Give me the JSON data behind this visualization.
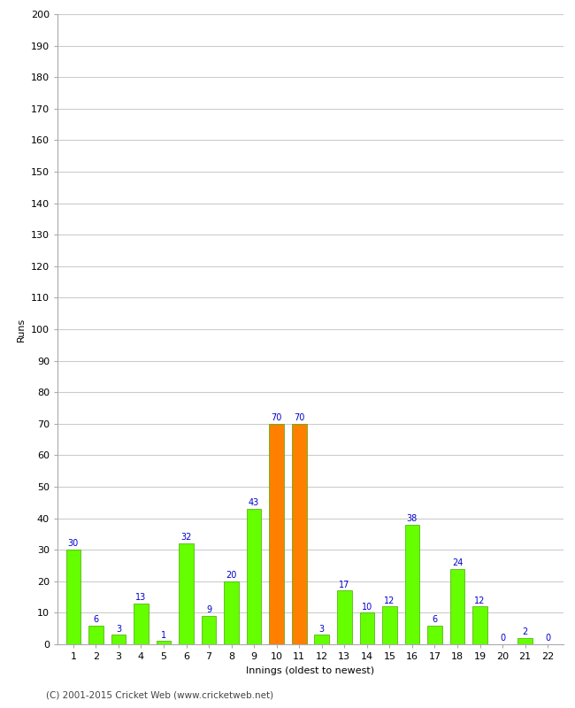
{
  "innings": [
    1,
    2,
    3,
    4,
    5,
    6,
    7,
    8,
    9,
    10,
    11,
    12,
    13,
    14,
    15,
    16,
    17,
    18,
    19,
    20,
    21,
    22
  ],
  "values": [
    30,
    6,
    3,
    13,
    1,
    32,
    9,
    20,
    43,
    70,
    70,
    3,
    17,
    10,
    12,
    38,
    6,
    24,
    12,
    0,
    2,
    0
  ],
  "colors": [
    "#66ff00",
    "#66ff00",
    "#66ff00",
    "#66ff00",
    "#66ff00",
    "#66ff00",
    "#66ff00",
    "#66ff00",
    "#66ff00",
    "#ff8000",
    "#ff8000",
    "#66ff00",
    "#66ff00",
    "#66ff00",
    "#66ff00",
    "#66ff00",
    "#66ff00",
    "#66ff00",
    "#66ff00",
    "#66ff00",
    "#66ff00",
    "#66ff00"
  ],
  "xlabel": "Innings (oldest to newest)",
  "ylabel": "Runs",
  "ylim": [
    0,
    200
  ],
  "yticks": [
    0,
    10,
    20,
    30,
    40,
    50,
    60,
    70,
    80,
    90,
    100,
    110,
    120,
    130,
    140,
    150,
    160,
    170,
    180,
    190,
    200
  ],
  "label_color": "#0000cc",
  "bar_color_green": "#66ff00",
  "bar_color_orange": "#ff8000",
  "bar_edge_color": "#44aa00",
  "background_color": "#ffffff",
  "plot_bg_color": "#ffffff",
  "grid_color": "#cccccc",
  "border_color": "#aaaaaa",
  "footer": "(C) 2001-2015 Cricket Web (www.cricketweb.net)",
  "footer_color": "#444444",
  "axis_label_fontsize": 8,
  "tick_fontsize": 8,
  "value_label_fontsize": 7,
  "bar_width": 0.65
}
